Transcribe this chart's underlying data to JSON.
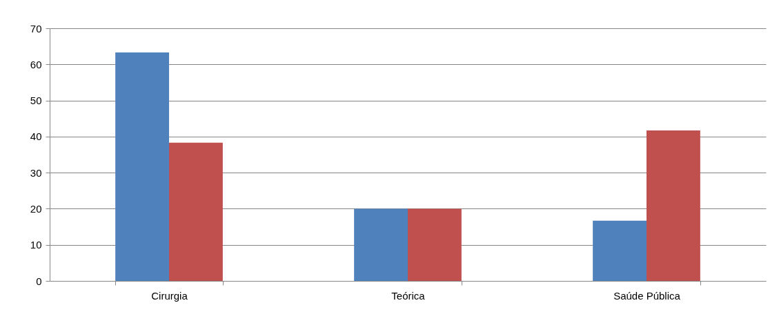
{
  "chart_data": {
    "type": "bar",
    "categories": [
      "Cirurgia",
      "Teórica",
      "Saúde Pública"
    ],
    "series": [
      {
        "color": "#4f81bd",
        "values": [
          63.3,
          20,
          16.7
        ]
      },
      {
        "color": "#c0504d",
        "values": [
          38.3,
          20,
          41.7
        ]
      }
    ],
    "ylim": [
      0,
      70
    ],
    "yticks": [
      0,
      10,
      20,
      30,
      40,
      50,
      60,
      70
    ],
    "grid": "y",
    "legend": false
  }
}
